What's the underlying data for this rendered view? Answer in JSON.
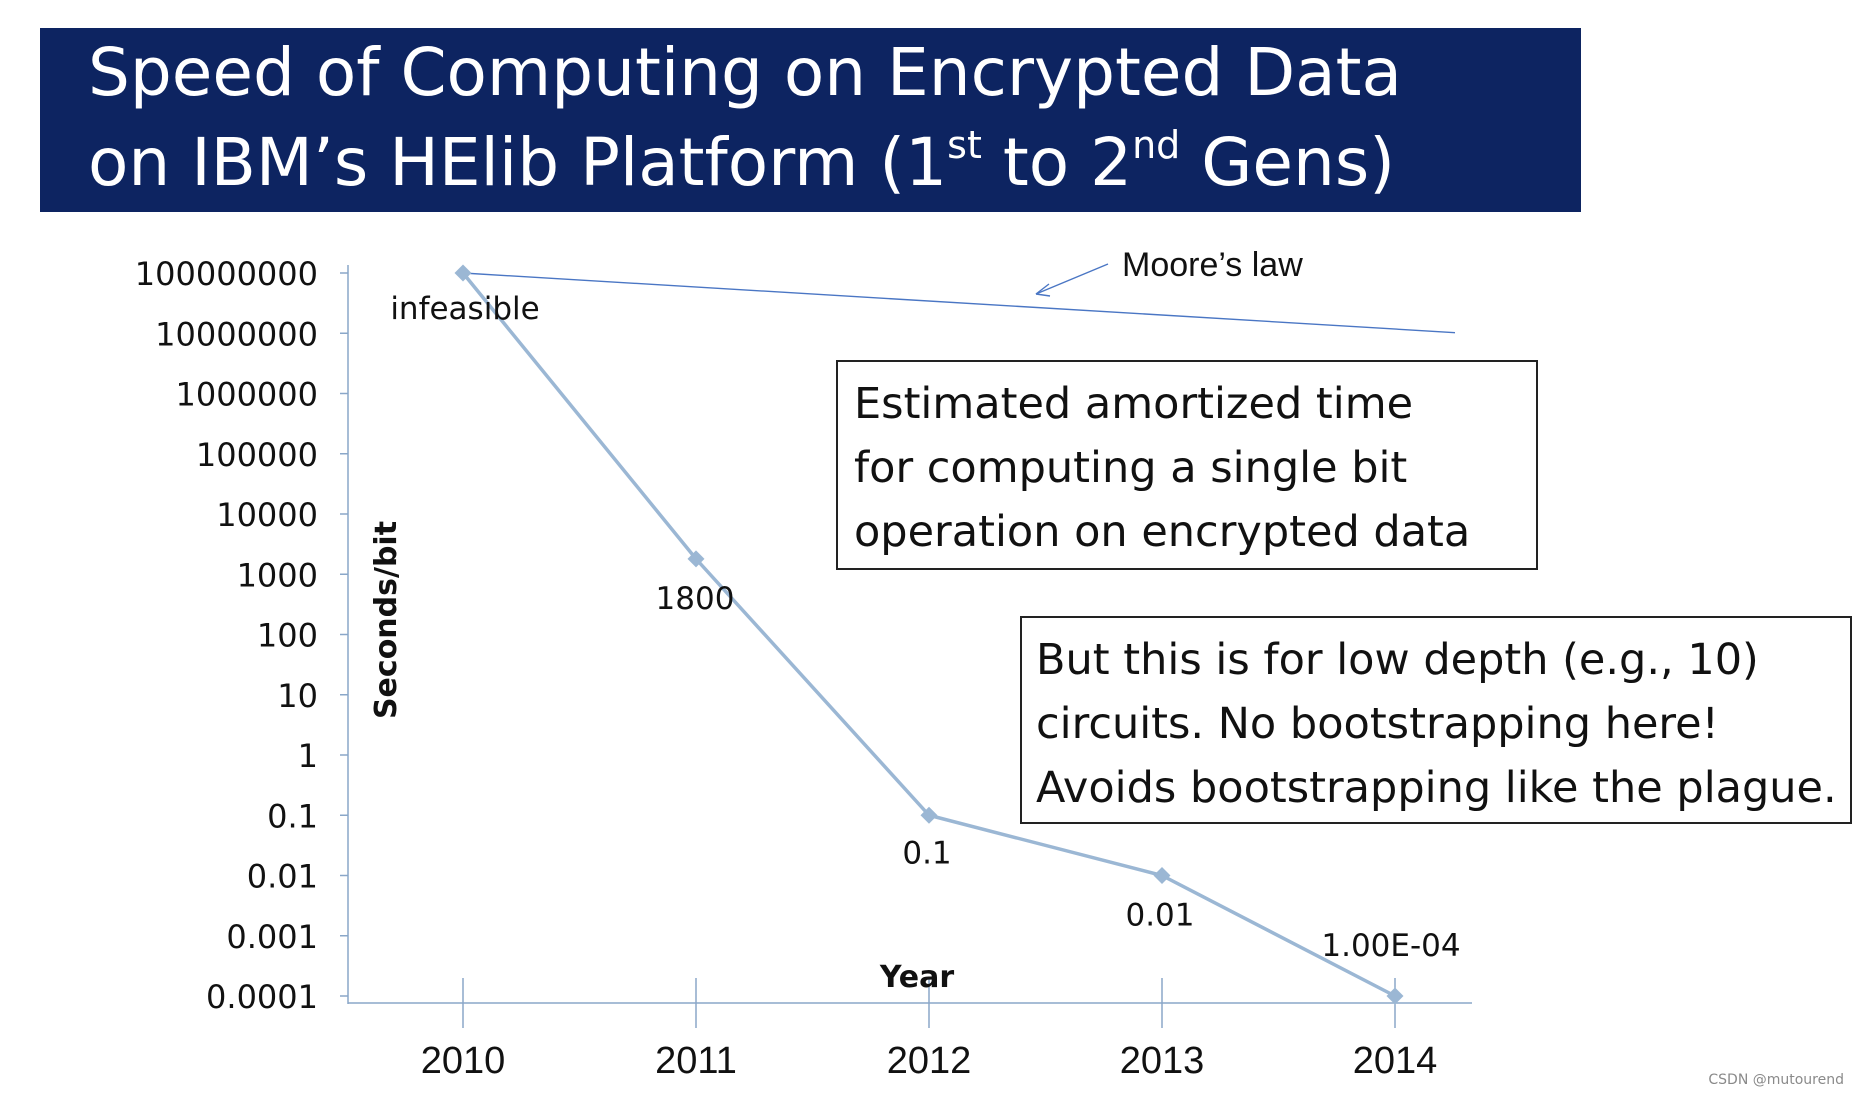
{
  "header": {
    "title_line1": "Speed of Computing on Encrypted Data",
    "title_line2_pre": "on IBM’s HElib Platform (1",
    "title_sup1": "st",
    "title_mid": " to 2",
    "title_sup2": "nd",
    "title_post": " Gens)"
  },
  "chart_data": {
    "type": "line",
    "xlabel": "Year",
    "ylabel": "Seconds/bit",
    "y_scale": "log",
    "categories": [
      "2010",
      "2011",
      "2012",
      "2013",
      "2014"
    ],
    "y_ticks": [
      "100000000",
      "10000000",
      "1000000",
      "100000",
      "10000",
      "1000",
      "100",
      "10",
      "1",
      "0.1",
      "0.01",
      "0.001",
      "0.0001"
    ],
    "ylim": [
      0.0001,
      100000000
    ],
    "series": [
      {
        "values": [
          100000000,
          1800,
          0.1,
          0.01,
          0.0001
        ],
        "data_labels": [
          "infeasible",
          "1800",
          "0.1",
          "0.01",
          "1.00E-04"
        ],
        "color": "#9bb7d4"
      }
    ],
    "annotations": {
      "moores_law": {
        "label": "Moore’s law",
        "start": {
          "x": "2010",
          "y": 100000000
        },
        "end": {
          "x": "2014",
          "y": 15000000
        },
        "color": "#4a76c4"
      }
    },
    "grid": false,
    "legend": "none"
  },
  "notes": {
    "box1": [
      "Estimated amortized time",
      "for computing a single bit",
      "operation on encrypted data"
    ],
    "box2": [
      "But this is for low depth (e.g., 10)",
      "circuits. No bootstrapping here!",
      "Avoids bootstrapping like the plague."
    ]
  },
  "watermark": "CSDN @mutourend"
}
